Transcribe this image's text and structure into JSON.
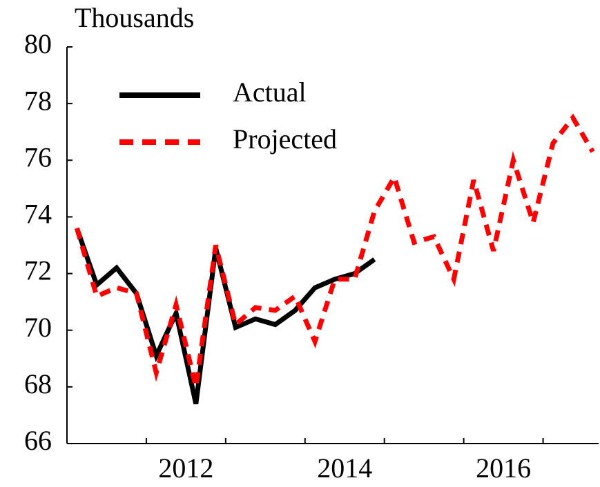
{
  "chart_data": {
    "type": "line",
    "title": "Thousands",
    "x": [
      2011.125,
      2011.375,
      2011.625,
      2011.875,
      2012.125,
      2012.375,
      2012.625,
      2012.875,
      2013.125,
      2013.375,
      2013.625,
      2013.875,
      2014.125,
      2014.375,
      2014.625,
      2014.875,
      2015.125,
      2015.375,
      2015.625,
      2015.875,
      2016.125,
      2016.375,
      2016.625,
      2016.875,
      2017.125,
      2017.375,
      2017.625
    ],
    "series": [
      {
        "name": "Actual",
        "color": "#000000",
        "dash": false,
        "values": [
          73.6,
          71.6,
          72.2,
          71.3,
          69.1,
          70.6,
          67.4,
          72.9,
          70.1,
          70.4,
          70.2,
          70.7,
          71.5,
          71.8,
          72.0,
          72.5,
          null,
          null,
          null,
          null,
          null,
          null,
          null,
          null,
          null,
          null,
          null
        ]
      },
      {
        "name": "Projected",
        "color": "#ff0000",
        "dash": true,
        "values": [
          73.6,
          71.2,
          71.5,
          71.3,
          68.5,
          70.9,
          68.0,
          73.0,
          70.2,
          70.8,
          70.7,
          71.2,
          69.6,
          71.8,
          71.8,
          74.2,
          75.4,
          73.1,
          73.3,
          71.8,
          75.3,
          72.8,
          76.0,
          73.8,
          76.6,
          77.5,
          76.3
        ]
      }
    ],
    "xlim": [
      2011,
      2017.7
    ],
    "xticks": [
      {
        "value": 2012.5,
        "label": "2012"
      },
      {
        "value": 2014.5,
        "label": "2014"
      },
      {
        "value": 2016.5,
        "label": "2016"
      }
    ],
    "xtick_marks": [
      2012,
      2013,
      2014,
      2015,
      2016,
      2017
    ],
    "ylim": [
      66,
      80
    ],
    "yticks": [
      66,
      68,
      70,
      72,
      74,
      76,
      78,
      80
    ],
    "grid": false
  }
}
